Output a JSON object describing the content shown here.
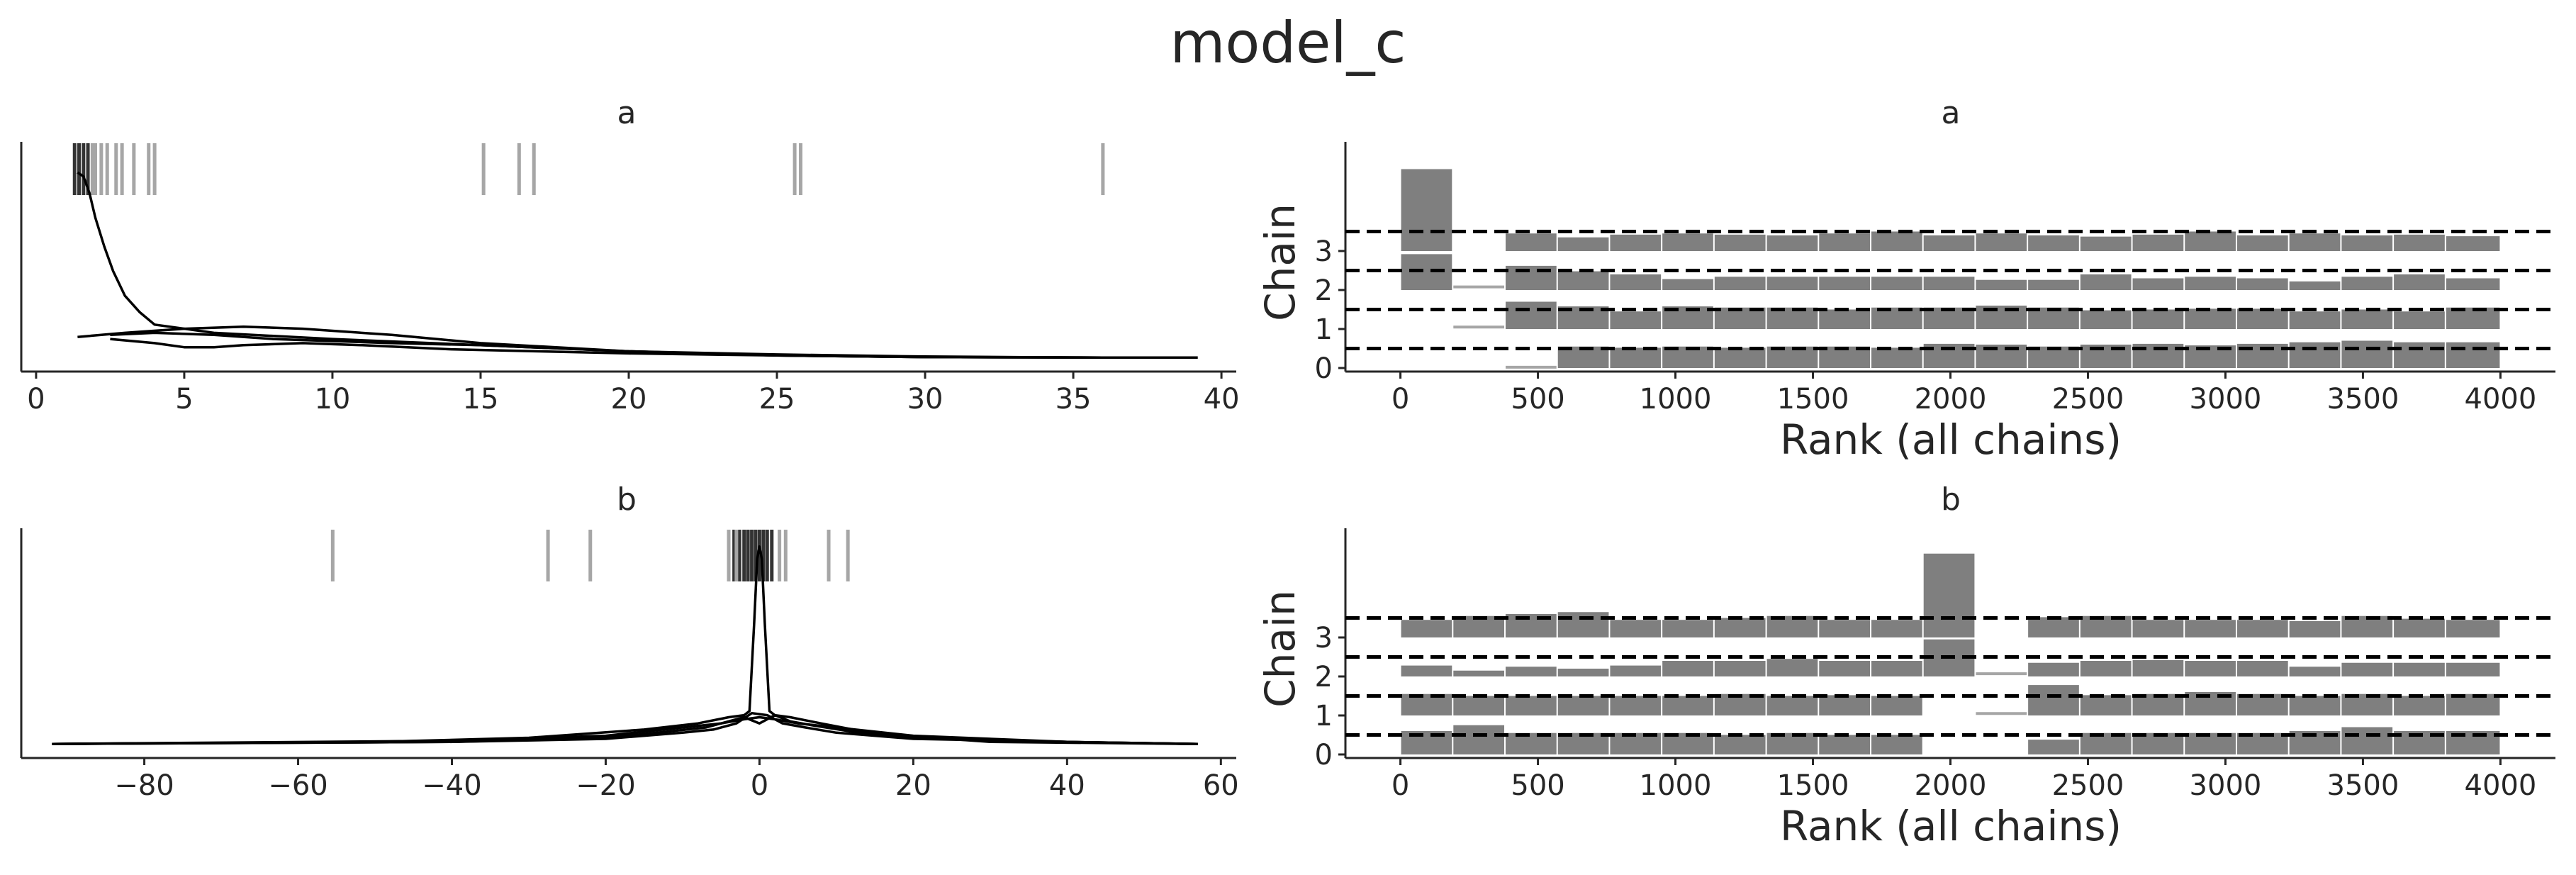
{
  "title": "model_c",
  "colors": {
    "text": "#262626",
    "line": "#000000",
    "bar": "#7f7f7f",
    "rug": "#a6a6a6",
    "rug_dark": "#333333"
  },
  "chart_data": [
    {
      "id": "density_a",
      "type": "line",
      "title": "a",
      "xlim": [
        -0.5,
        40.5
      ],
      "xticks": [
        0,
        5,
        10,
        15,
        20,
        25,
        30,
        35,
        40
      ],
      "ylim": [
        0,
        1
      ],
      "series": [
        {
          "x": [
            1.4,
            1.6,
            1.8,
            2.0,
            2.3,
            2.6,
            3.0,
            3.5,
            4.0,
            6,
            10,
            15,
            20,
            25,
            30,
            35,
            39.2
          ],
          "y": [
            0.92,
            0.9,
            0.82,
            0.7,
            0.56,
            0.44,
            0.32,
            0.24,
            0.18,
            0.14,
            0.11,
            0.08,
            0.05,
            0.035,
            0.025,
            0.02,
            0.02
          ]
        },
        {
          "x": [
            1.4,
            3,
            5,
            7,
            9,
            12,
            15,
            20,
            25,
            30,
            36
          ],
          "y": [
            0.12,
            0.14,
            0.16,
            0.17,
            0.16,
            0.13,
            0.09,
            0.05,
            0.03,
            0.022,
            0.02
          ]
        },
        {
          "x": [
            2.5,
            4,
            6,
            8,
            10,
            12,
            15,
            20,
            25,
            30,
            36
          ],
          "y": [
            0.13,
            0.14,
            0.13,
            0.11,
            0.1,
            0.09,
            0.08,
            0.05,
            0.03,
            0.022,
            0.02
          ]
        },
        {
          "x": [
            2.5,
            4,
            5,
            6,
            7,
            9,
            11,
            14,
            17,
            20,
            25,
            30,
            36
          ],
          "y": [
            0.11,
            0.09,
            0.07,
            0.07,
            0.08,
            0.09,
            0.08,
            0.06,
            0.05,
            0.04,
            0.03,
            0.022,
            0.02
          ]
        }
      ],
      "rug": [
        {
          "x": [
            1.3,
            1.45,
            1.6,
            1.75
          ],
          "dark": true
        },
        {
          "x": [
            1.9,
            2.0,
            2.2,
            2.4,
            2.7,
            2.9,
            3.3,
            3.8,
            4.0,
            15.1,
            16.3,
            16.8,
            25.6,
            25.8,
            36.0
          ],
          "dark": false
        }
      ]
    },
    {
      "id": "rank_a",
      "type": "bar",
      "title": "a",
      "xlabel": "Rank (all chains)",
      "ylabel": "Chain",
      "xlim": [
        -200,
        4200
      ],
      "xticks": [
        0,
        500,
        1000,
        1500,
        2000,
        2500,
        3000,
        3500,
        4000
      ],
      "yticks": [
        0,
        1,
        2,
        3
      ],
      "bin_edges": [
        0,
        190,
        380,
        570,
        760,
        950,
        1140,
        1330,
        1520,
        1710,
        1900,
        2090,
        2280,
        2470,
        2660,
        2850,
        3040,
        3230,
        3420,
        3610,
        3800,
        4000
      ],
      "chains": [
        {
          "chain": 0,
          "heights": [
            0.0,
            0.0,
            0.02,
            0.55,
            0.52,
            0.55,
            0.52,
            0.55,
            0.55,
            0.52,
            0.62,
            0.6,
            0.55,
            0.6,
            0.62,
            0.58,
            0.62,
            0.66,
            0.7,
            0.66,
            0.66
          ]
        },
        {
          "chain": 1,
          "heights": [
            0.0,
            0.05,
            0.7,
            0.58,
            0.45,
            0.58,
            0.55,
            0.55,
            0.5,
            0.55,
            0.55,
            0.6,
            0.55,
            0.48,
            0.5,
            0.52,
            0.52,
            0.45,
            0.5,
            0.45,
            0.55
          ]
        },
        {
          "chain": 2,
          "heights": [
            0.92,
            0.08,
            0.62,
            0.48,
            0.4,
            0.28,
            0.34,
            0.34,
            0.34,
            0.34,
            0.34,
            0.26,
            0.26,
            0.4,
            0.3,
            0.34,
            0.3,
            0.22,
            0.34,
            0.4,
            0.3
          ]
        },
        {
          "chain": 3,
          "heights": [
            2.1,
            0.0,
            0.45,
            0.35,
            0.42,
            0.45,
            0.42,
            0.4,
            0.45,
            0.5,
            0.4,
            0.45,
            0.4,
            0.37,
            0.42,
            0.5,
            0.4,
            0.45,
            0.4,
            0.42,
            0.38
          ]
        }
      ]
    },
    {
      "id": "density_b",
      "type": "line",
      "title": "b",
      "xlim": [
        -96,
        62
      ],
      "xticks": [
        -80,
        -60,
        -40,
        -20,
        0,
        20,
        40,
        60
      ],
      "ylim": [
        0,
        1
      ],
      "series": [
        {
          "x": [
            -92,
            -50,
            -30,
            -15,
            -8,
            -4,
            -2,
            -1.3,
            -0.7,
            -0.3,
            0,
            0.3,
            0.7,
            1.3,
            2,
            4,
            8,
            15,
            30,
            57
          ],
          "y": [
            0.02,
            0.03,
            0.05,
            0.09,
            0.12,
            0.15,
            0.16,
            0.18,
            0.6,
            0.92,
            0.98,
            0.92,
            0.6,
            0.18,
            0.16,
            0.15,
            0.12,
            0.07,
            0.03,
            0.02
          ]
        },
        {
          "x": [
            -92,
            -40,
            -20,
            -10,
            -5,
            -2,
            0,
            2,
            5,
            10,
            20,
            40,
            57
          ],
          "y": [
            0.02,
            0.035,
            0.06,
            0.1,
            0.12,
            0.14,
            0.15,
            0.14,
            0.12,
            0.1,
            0.06,
            0.03,
            0.02
          ]
        },
        {
          "x": [
            -92,
            -40,
            -20,
            -12,
            -7,
            -4,
            -2,
            0,
            2,
            4,
            7,
            12,
            20,
            40,
            57
          ],
          "y": [
            0.02,
            0.03,
            0.05,
            0.08,
            0.1,
            0.13,
            0.15,
            0.12,
            0.16,
            0.13,
            0.11,
            0.08,
            0.05,
            0.03,
            0.02
          ]
        },
        {
          "x": [
            -92,
            -40,
            -20,
            -10,
            -6,
            -3,
            -1,
            1,
            3,
            6,
            10,
            20,
            40,
            57
          ],
          "y": [
            0.02,
            0.03,
            0.045,
            0.075,
            0.09,
            0.12,
            0.17,
            0.16,
            0.12,
            0.1,
            0.075,
            0.045,
            0.03,
            0.02
          ]
        }
      ],
      "rug": [
        {
          "x": [
            -3.3,
            -2.6,
            -2.0,
            -1.5,
            -1.0,
            -0.5,
            0.0,
            0.5,
            1.0,
            1.6
          ],
          "dark": true
        },
        {
          "x": [
            -55.5,
            -27.5,
            -22.0,
            -4.0,
            -3.0,
            2.6,
            3.4,
            9.0,
            11.5
          ],
          "dark": false
        }
      ]
    },
    {
      "id": "rank_b",
      "type": "bar",
      "title": "b",
      "xlabel": "Rank (all chains)",
      "ylabel": "Chain",
      "xlim": [
        -200,
        4200
      ],
      "xticks": [
        0,
        500,
        1000,
        1500,
        2000,
        2500,
        3000,
        3500,
        4000
      ],
      "yticks": [
        0,
        1,
        2,
        3
      ],
      "bin_edges": [
        0,
        190,
        380,
        570,
        760,
        950,
        1140,
        1330,
        1520,
        1710,
        1900,
        2090,
        2280,
        2470,
        2660,
        2850,
        3040,
        3230,
        3420,
        3610,
        3800,
        4000
      ],
      "chains": [
        {
          "chain": 0,
          "heights": [
            0.6,
            0.75,
            0.55,
            0.55,
            0.55,
            0.55,
            0.5,
            0.55,
            0.5,
            0.5,
            0.0,
            0.0,
            0.38,
            0.55,
            0.55,
            0.55,
            0.55,
            0.6,
            0.7,
            0.6,
            0.6
          ]
        },
        {
          "chain": 1,
          "heights": [
            0.55,
            0.5,
            0.5,
            0.5,
            0.5,
            0.5,
            0.55,
            0.5,
            0.52,
            0.5,
            0.0,
            0.05,
            0.78,
            0.52,
            0.55,
            0.6,
            0.55,
            0.5,
            0.55,
            0.5,
            0.55
          ]
        },
        {
          "chain": 2,
          "heights": [
            0.28,
            0.15,
            0.25,
            0.2,
            0.28,
            0.4,
            0.4,
            0.45,
            0.4,
            0.4,
            0.95,
            0.07,
            0.35,
            0.4,
            0.42,
            0.4,
            0.4,
            0.25,
            0.35,
            0.35,
            0.35
          ]
        },
        {
          "chain": 3,
          "heights": [
            0.45,
            0.55,
            0.6,
            0.65,
            0.45,
            0.45,
            0.5,
            0.55,
            0.45,
            0.45,
            2.15,
            0.0,
            0.52,
            0.55,
            0.45,
            0.45,
            0.45,
            0.42,
            0.55,
            0.48,
            0.45
          ]
        }
      ]
    }
  ]
}
